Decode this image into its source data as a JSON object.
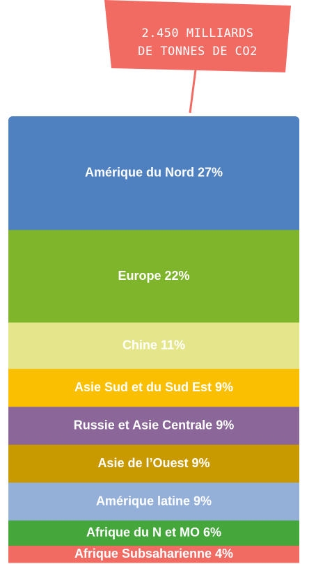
{
  "chart_data": {
    "type": "stacked_column",
    "annotation": [
      "2.450 MILLIARDS",
      "DE TONNES DE CO2"
    ],
    "annotation_color": "#f26b63",
    "categories": [
      "Amérique du Nord",
      "Europe",
      "Chine",
      "Asie Sud et du Sud Est",
      "Russie et Asie Centrale",
      "Asie de l’Ouest",
      "Amérique latine",
      "Afrique du N et MO",
      "Afrique Subsaharienne"
    ],
    "values": [
      27,
      22,
      11,
      9,
      9,
      9,
      9,
      6,
      4
    ],
    "value_labels": [
      "27%",
      "22%",
      "11%",
      "9%",
      "9%",
      "9%",
      "9%",
      "6%",
      "4%"
    ],
    "colors": [
      "#4f81c0",
      "#7eb52b",
      "#e5e68c",
      "#f9bf00",
      "#8a6699",
      "#c99900",
      "#94afd8",
      "#44a63b",
      "#f26b63"
    ]
  }
}
